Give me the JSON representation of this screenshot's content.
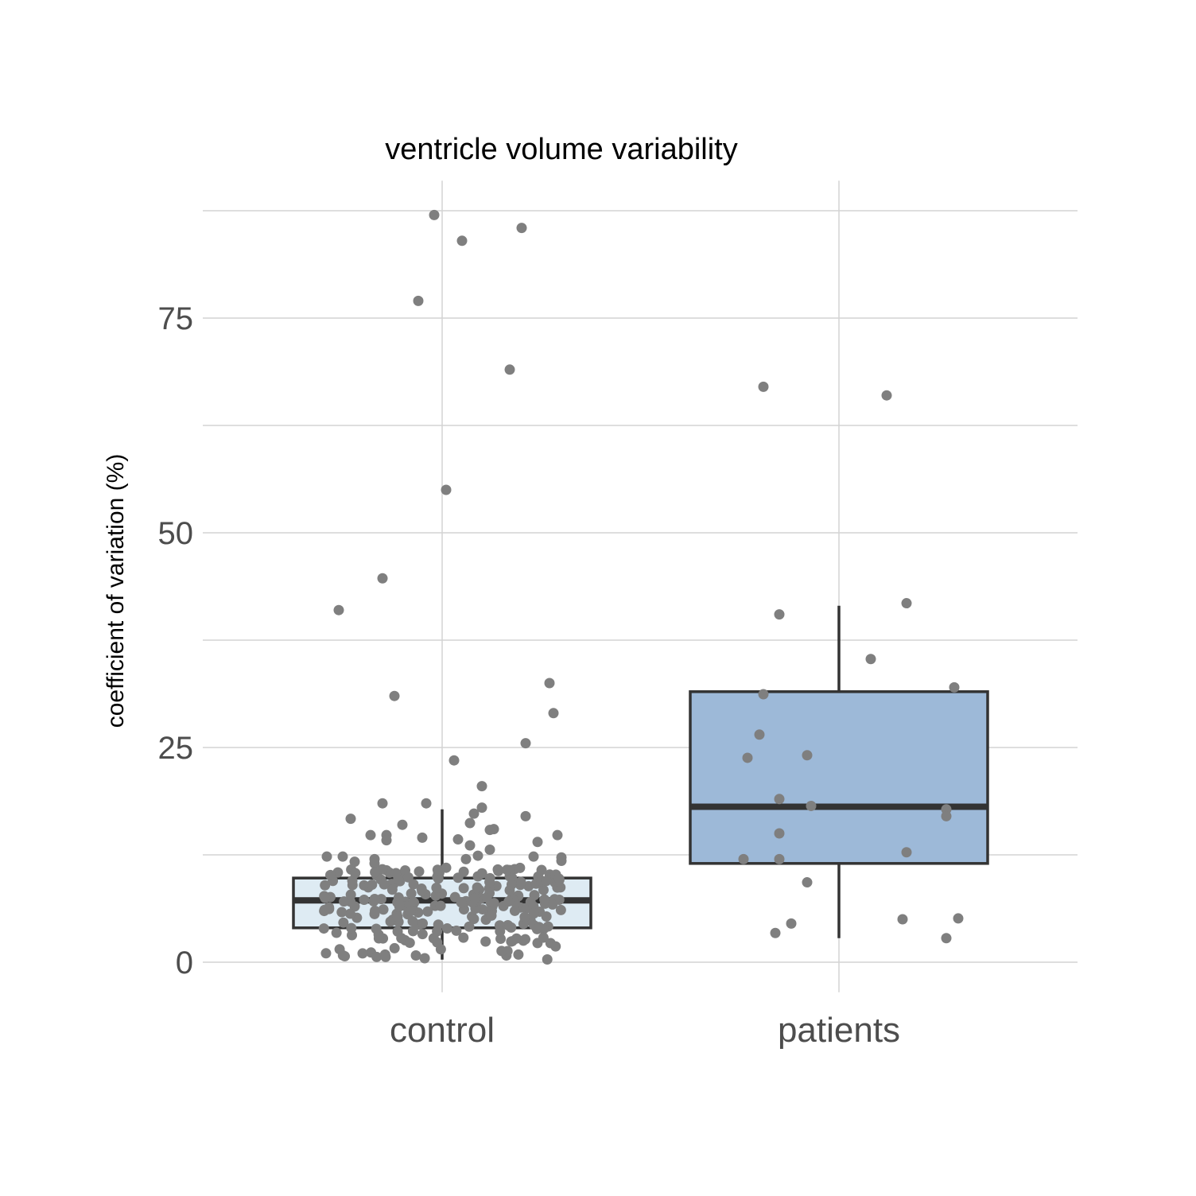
{
  "chart_data": {
    "type": "boxplot",
    "title": "ventricle volume variability",
    "xlabel": "",
    "ylabel": "coefficient of variation (%)",
    "ylim": [
      -3.5,
      91
    ],
    "yticks": [
      0,
      25,
      50,
      75
    ],
    "ytick_labels": [
      "0",
      "25",
      "50",
      "75"
    ],
    "minor_yticks": [
      12.5,
      37.5,
      62.5,
      87.5
    ],
    "grid": true,
    "legend": "none",
    "colors": {
      "grid": "#d4d4d4",
      "box_outline": "#333333",
      "point": "#7f7f7f",
      "control_fill": "#deebf3",
      "patients_fill": "#9db9d8"
    },
    "categories": [
      "control",
      "patients"
    ],
    "boxes": [
      {
        "category": "control",
        "q1": 4,
        "median": 7.2,
        "q3": 9.8,
        "whisker_low": 0.3,
        "whisker_high": 17.8
      },
      {
        "category": "patients",
        "q1": 11.5,
        "median": 18.1,
        "q3": 31.5,
        "whisker_low": 2.8,
        "whisker_high": 41.5
      }
    ],
    "points": {
      "control": [
        {
          "dx": -0.02,
          "y": 87
        },
        {
          "dx": 0.05,
          "y": 84
        },
        {
          "dx": 0.2,
          "y": 85.5
        },
        {
          "dx": -0.06,
          "y": 77
        },
        {
          "dx": 0.17,
          "y": 69
        },
        {
          "dx": 0.01,
          "y": 55
        },
        {
          "dx": -0.15,
          "y": 44.7
        },
        {
          "dx": -0.26,
          "y": 41
        },
        {
          "dx": -0.12,
          "y": 31
        },
        {
          "dx": 0.27,
          "y": 32.5
        },
        {
          "dx": 0.28,
          "y": 29
        },
        {
          "dx": 0.21,
          "y": 25.5
        },
        {
          "dx": 0.03,
          "y": 23.5
        },
        {
          "dx": 0.1,
          "y": 20.5
        },
        {
          "dx": -0.04,
          "y": 18.5
        },
        {
          "dx": -0.15,
          "y": 18.5
        },
        {
          "dx": 0.1,
          "y": 18
        },
        {
          "dx": 0.08,
          "y": 17.3
        },
        {
          "dx": -0.23,
          "y": 16.7
        },
        {
          "dx": 0.21,
          "y": 17
        },
        {
          "dx": 0.13,
          "y": 15.5
        },
        {
          "dx": 0.12,
          "y": 15.4
        },
        {
          "dx": -0.1,
          "y": 16
        },
        {
          "dx": 0.07,
          "y": 16.2
        },
        {
          "dx": -0.18,
          "y": 14.8
        },
        {
          "dx": -0.14,
          "y": 14.8
        },
        {
          "dx": -0.05,
          "y": 14.5
        },
        {
          "dx": 0.04,
          "y": 14.3
        },
        {
          "dx": -0.14,
          "y": 14.2
        },
        {
          "dx": 0.24,
          "y": 14
        },
        {
          "dx": 0.29,
          "y": 14.8
        },
        {
          "dx": 0.07,
          "y": 13.6
        },
        {
          "dx": 0.12,
          "y": 13.1
        },
        {
          "dx": -0.29,
          "y": 12.3
        },
        {
          "dx": -0.25,
          "y": 12.3
        },
        {
          "dx": -0.17,
          "y": 12
        },
        {
          "dx": 0.23,
          "y": 12.3
        },
        {
          "dx": 0.3,
          "y": 12.2
        },
        {
          "dx": 0.3,
          "y": 11.8
        },
        {
          "dx": 0.06,
          "y": 12
        },
        {
          "dx": 0.09,
          "y": 12.4
        },
        {
          "dx": -0.22,
          "y": 11.7
        },
        {
          "dx": -0.17,
          "y": 11.5
        },
        {
          "dx": -0.14,
          "y": 10.7
        },
        {
          "dx": 0.01,
          "y": 11
        },
        {
          "dx": -0.01,
          "y": 10.4
        },
        {
          "dx": 0.14,
          "y": 10.8
        },
        {
          "dx": 0.17,
          "y": 10
        },
        {
          "dx": -0.1,
          "y": 10.2
        },
        {
          "dx": 0.09,
          "y": 10
        }
      ],
      "patients": [
        {
          "dx": -0.19,
          "y": 67
        },
        {
          "dx": 0.12,
          "y": 66
        },
        {
          "dx": -0.15,
          "y": 40.5
        },
        {
          "dx": 0.17,
          "y": 41.8
        },
        {
          "dx": 0.08,
          "y": 35.3
        },
        {
          "dx": -0.19,
          "y": 31.2
        },
        {
          "dx": 0.29,
          "y": 32
        },
        {
          "dx": -0.2,
          "y": 26.5
        },
        {
          "dx": -0.23,
          "y": 23.8
        },
        {
          "dx": -0.08,
          "y": 24.1
        },
        {
          "dx": -0.15,
          "y": 19
        },
        {
          "dx": -0.07,
          "y": 18.2
        },
        {
          "dx": 0.27,
          "y": 17.8
        },
        {
          "dx": 0.27,
          "y": 17
        },
        {
          "dx": -0.15,
          "y": 15
        },
        {
          "dx": 0.17,
          "y": 12.8
        },
        {
          "dx": -0.24,
          "y": 12
        },
        {
          "dx": -0.15,
          "y": 12
        },
        {
          "dx": -0.08,
          "y": 9.3
        },
        {
          "dx": 0.16,
          "y": 5
        },
        {
          "dx": 0.3,
          "y": 5.1
        },
        {
          "dx": -0.12,
          "y": 4.5
        },
        {
          "dx": -0.16,
          "y": 3.4
        },
        {
          "dx": 0.27,
          "y": 2.8
        }
      ]
    }
  }
}
